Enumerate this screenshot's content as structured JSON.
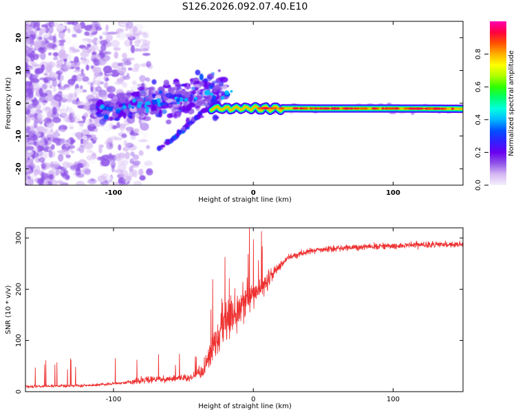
{
  "figure": {
    "title": "S126.2026.092.07.40.E10"
  },
  "chart_data": [
    {
      "type": "heatmap",
      "name": "spectrogram",
      "xlabel": "Height of straight line (km)",
      "ylabel": "Frequency (Hz)",
      "xlim": [
        -163,
        150
      ],
      "ylim": [
        -25,
        25
      ],
      "xticks": [
        -100,
        0,
        100
      ],
      "xtick_labels": [
        "-100",
        "0",
        "100"
      ],
      "yticks": [
        -20,
        -10,
        0,
        10,
        20
      ],
      "ytick_labels": [
        "-20",
        "-10",
        "0",
        "10",
        "20"
      ],
      "colorbar": {
        "label": "Normalized spectral amplitude",
        "range": [
          0,
          1
        ],
        "ticks": [
          0.0,
          0.2,
          0.4,
          0.6,
          0.8
        ],
        "tick_labels": [
          "0.0",
          "0.2",
          "0.4",
          "0.6",
          "0.8"
        ],
        "colors": [
          "#f4f0fc",
          "#d5b8f3",
          "#9055e8",
          "#6a00f0",
          "#3020ff",
          "#0050ff",
          "#00b8ff",
          "#00ffe0",
          "#00ff70",
          "#30ff00",
          "#b0ff00",
          "#ffff00",
          "#ffb000",
          "#ff5000",
          "#ff0040",
          "#ff00b0"
        ]
      },
      "ridge": [
        {
          "x": -20,
          "y": -1.5
        },
        {
          "x": 0,
          "y": -1.5
        },
        {
          "x": 50,
          "y": -1.6
        },
        {
          "x": 100,
          "y": -1.6
        },
        {
          "x": 150,
          "y": -1.7
        }
      ],
      "branch": [
        {
          "x": -68,
          "y": -14
        },
        {
          "x": -55,
          "y": -10
        },
        {
          "x": -45,
          "y": -6
        },
        {
          "x": -35,
          "y": -2
        },
        {
          "x": -25,
          "y": 0
        }
      ]
    },
    {
      "type": "line",
      "name": "snr",
      "xlabel": "Height of straight line (km)",
      "ylabel": "SNR (10 * v/v)",
      "xlim": [
        -163,
        150
      ],
      "ylim": [
        0,
        320
      ],
      "xticks": [
        -100,
        0,
        100
      ],
      "xtick_labels": [
        "-100",
        "0",
        "100"
      ],
      "yticks": [
        0,
        100,
        200,
        300
      ],
      "ytick_labels": [
        "0",
        "100",
        "200",
        "300"
      ],
      "color": "#ee3030",
      "envelope": [
        {
          "x": -163,
          "y": 10
        },
        {
          "x": -120,
          "y": 12
        },
        {
          "x": -100,
          "y": 15
        },
        {
          "x": -80,
          "y": 22
        },
        {
          "x": -60,
          "y": 25
        },
        {
          "x": -45,
          "y": 27
        },
        {
          "x": -35,
          "y": 45
        },
        {
          "x": -25,
          "y": 110
        },
        {
          "x": -15,
          "y": 150
        },
        {
          "x": -5,
          "y": 175
        },
        {
          "x": 5,
          "y": 200
        },
        {
          "x": 15,
          "y": 235
        },
        {
          "x": 25,
          "y": 262
        },
        {
          "x": 40,
          "y": 275
        },
        {
          "x": 60,
          "y": 280
        },
        {
          "x": 80,
          "y": 283
        },
        {
          "x": 100,
          "y": 285
        },
        {
          "x": 125,
          "y": 287
        },
        {
          "x": 150,
          "y": 288
        }
      ]
    }
  ]
}
